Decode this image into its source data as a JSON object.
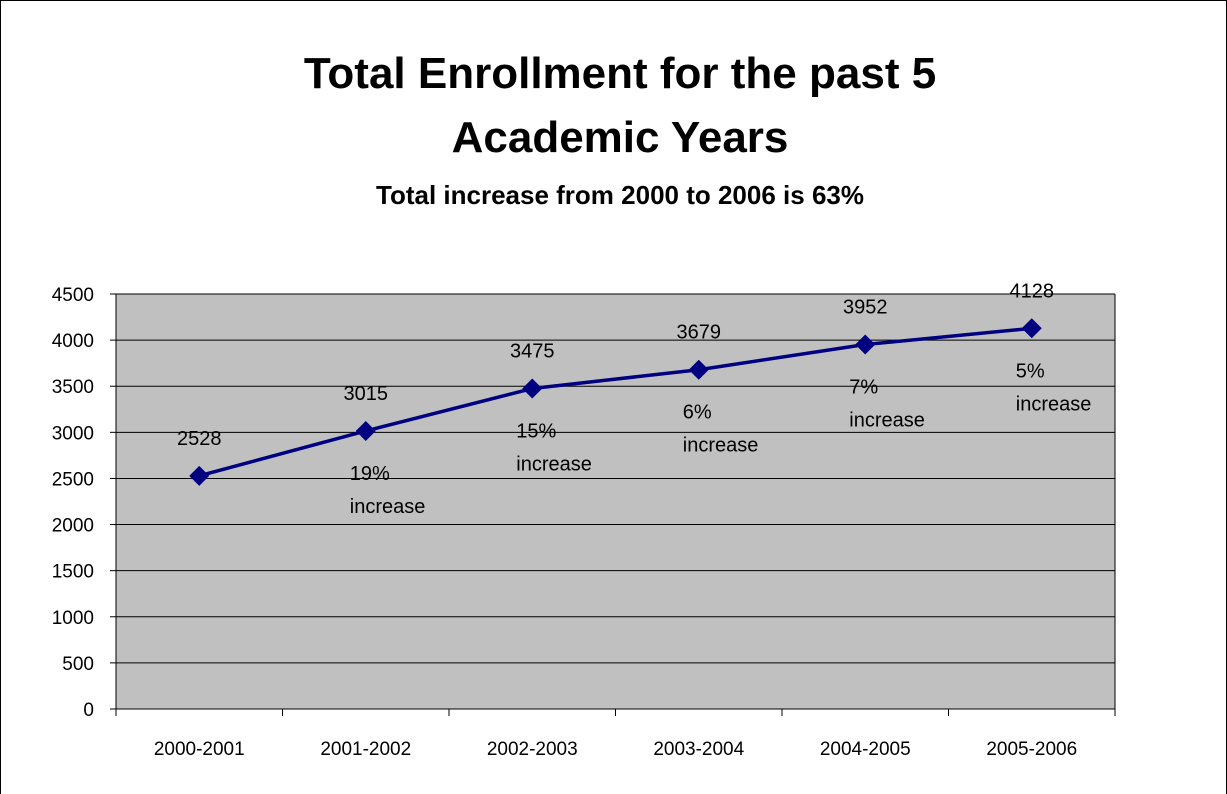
{
  "chart_data": {
    "type": "line",
    "title_lines": [
      "Total Enrollment for the past 5",
      "Academic Years"
    ],
    "subtitle": "Total increase from 2000 to 2006 is 63%",
    "xlabel": "",
    "ylabel": "",
    "categories": [
      "2000-2001",
      "2001-2002",
      "2002-2003",
      "2003-2004",
      "2004-2005",
      "2005-2006"
    ],
    "values": [
      2528,
      3015,
      3475,
      3679,
      3952,
      4128
    ],
    "value_labels": [
      "2528",
      "3015",
      "3475",
      "3679",
      "3952",
      "4128"
    ],
    "annotations": [
      null,
      [
        "19%",
        "increase"
      ],
      [
        "15%",
        "increase"
      ],
      [
        "6%",
        "increase"
      ],
      [
        "7%",
        "increase"
      ],
      [
        "5%",
        "increase"
      ]
    ],
    "ylim": [
      0,
      4500
    ],
    "yticks": [
      0,
      500,
      1000,
      1500,
      2000,
      2500,
      3000,
      3500,
      4000,
      4500
    ],
    "grid": true,
    "legend": "none",
    "colors": {
      "line": "#000080",
      "plot_background": "#c0c0c0",
      "gridline": "#000000",
      "border": "#000000"
    }
  }
}
